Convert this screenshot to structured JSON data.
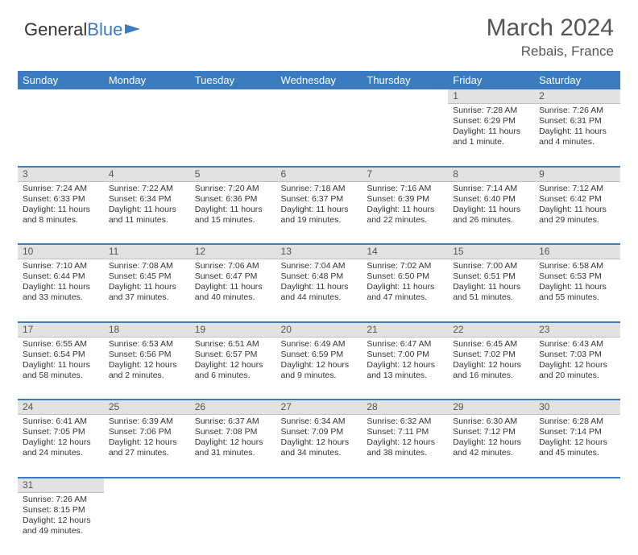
{
  "logo": {
    "text1": "General",
    "text2": "Blue",
    "icon_color": "#3b7bbf"
  },
  "title": "March 2024",
  "location": "Rebais, France",
  "colors": {
    "header_bg": "#3b7bbf",
    "header_fg": "#ffffff",
    "daynum_bg": "#e2e2e2",
    "row_divider": "#3b7bbf"
  },
  "week_headers": [
    "Sunday",
    "Monday",
    "Tuesday",
    "Wednesday",
    "Thursday",
    "Friday",
    "Saturday"
  ],
  "weeks": [
    [
      null,
      null,
      null,
      null,
      null,
      {
        "n": "1",
        "sr": "Sunrise: 7:28 AM",
        "ss": "Sunset: 6:29 PM",
        "dl": "Daylight: 11 hours and 1 minute."
      },
      {
        "n": "2",
        "sr": "Sunrise: 7:26 AM",
        "ss": "Sunset: 6:31 PM",
        "dl": "Daylight: 11 hours and 4 minutes."
      }
    ],
    [
      {
        "n": "3",
        "sr": "Sunrise: 7:24 AM",
        "ss": "Sunset: 6:33 PM",
        "dl": "Daylight: 11 hours and 8 minutes."
      },
      {
        "n": "4",
        "sr": "Sunrise: 7:22 AM",
        "ss": "Sunset: 6:34 PM",
        "dl": "Daylight: 11 hours and 11 minutes."
      },
      {
        "n": "5",
        "sr": "Sunrise: 7:20 AM",
        "ss": "Sunset: 6:36 PM",
        "dl": "Daylight: 11 hours and 15 minutes."
      },
      {
        "n": "6",
        "sr": "Sunrise: 7:18 AM",
        "ss": "Sunset: 6:37 PM",
        "dl": "Daylight: 11 hours and 19 minutes."
      },
      {
        "n": "7",
        "sr": "Sunrise: 7:16 AM",
        "ss": "Sunset: 6:39 PM",
        "dl": "Daylight: 11 hours and 22 minutes."
      },
      {
        "n": "8",
        "sr": "Sunrise: 7:14 AM",
        "ss": "Sunset: 6:40 PM",
        "dl": "Daylight: 11 hours and 26 minutes."
      },
      {
        "n": "9",
        "sr": "Sunrise: 7:12 AM",
        "ss": "Sunset: 6:42 PM",
        "dl": "Daylight: 11 hours and 29 minutes."
      }
    ],
    [
      {
        "n": "10",
        "sr": "Sunrise: 7:10 AM",
        "ss": "Sunset: 6:44 PM",
        "dl": "Daylight: 11 hours and 33 minutes."
      },
      {
        "n": "11",
        "sr": "Sunrise: 7:08 AM",
        "ss": "Sunset: 6:45 PM",
        "dl": "Daylight: 11 hours and 37 minutes."
      },
      {
        "n": "12",
        "sr": "Sunrise: 7:06 AM",
        "ss": "Sunset: 6:47 PM",
        "dl": "Daylight: 11 hours and 40 minutes."
      },
      {
        "n": "13",
        "sr": "Sunrise: 7:04 AM",
        "ss": "Sunset: 6:48 PM",
        "dl": "Daylight: 11 hours and 44 minutes."
      },
      {
        "n": "14",
        "sr": "Sunrise: 7:02 AM",
        "ss": "Sunset: 6:50 PM",
        "dl": "Daylight: 11 hours and 47 minutes."
      },
      {
        "n": "15",
        "sr": "Sunrise: 7:00 AM",
        "ss": "Sunset: 6:51 PM",
        "dl": "Daylight: 11 hours and 51 minutes."
      },
      {
        "n": "16",
        "sr": "Sunrise: 6:58 AM",
        "ss": "Sunset: 6:53 PM",
        "dl": "Daylight: 11 hours and 55 minutes."
      }
    ],
    [
      {
        "n": "17",
        "sr": "Sunrise: 6:55 AM",
        "ss": "Sunset: 6:54 PM",
        "dl": "Daylight: 11 hours and 58 minutes."
      },
      {
        "n": "18",
        "sr": "Sunrise: 6:53 AM",
        "ss": "Sunset: 6:56 PM",
        "dl": "Daylight: 12 hours and 2 minutes."
      },
      {
        "n": "19",
        "sr": "Sunrise: 6:51 AM",
        "ss": "Sunset: 6:57 PM",
        "dl": "Daylight: 12 hours and 6 minutes."
      },
      {
        "n": "20",
        "sr": "Sunrise: 6:49 AM",
        "ss": "Sunset: 6:59 PM",
        "dl": "Daylight: 12 hours and 9 minutes."
      },
      {
        "n": "21",
        "sr": "Sunrise: 6:47 AM",
        "ss": "Sunset: 7:00 PM",
        "dl": "Daylight: 12 hours and 13 minutes."
      },
      {
        "n": "22",
        "sr": "Sunrise: 6:45 AM",
        "ss": "Sunset: 7:02 PM",
        "dl": "Daylight: 12 hours and 16 minutes."
      },
      {
        "n": "23",
        "sr": "Sunrise: 6:43 AM",
        "ss": "Sunset: 7:03 PM",
        "dl": "Daylight: 12 hours and 20 minutes."
      }
    ],
    [
      {
        "n": "24",
        "sr": "Sunrise: 6:41 AM",
        "ss": "Sunset: 7:05 PM",
        "dl": "Daylight: 12 hours and 24 minutes."
      },
      {
        "n": "25",
        "sr": "Sunrise: 6:39 AM",
        "ss": "Sunset: 7:06 PM",
        "dl": "Daylight: 12 hours and 27 minutes."
      },
      {
        "n": "26",
        "sr": "Sunrise: 6:37 AM",
        "ss": "Sunset: 7:08 PM",
        "dl": "Daylight: 12 hours and 31 minutes."
      },
      {
        "n": "27",
        "sr": "Sunrise: 6:34 AM",
        "ss": "Sunset: 7:09 PM",
        "dl": "Daylight: 12 hours and 34 minutes."
      },
      {
        "n": "28",
        "sr": "Sunrise: 6:32 AM",
        "ss": "Sunset: 7:11 PM",
        "dl": "Daylight: 12 hours and 38 minutes."
      },
      {
        "n": "29",
        "sr": "Sunrise: 6:30 AM",
        "ss": "Sunset: 7:12 PM",
        "dl": "Daylight: 12 hours and 42 minutes."
      },
      {
        "n": "30",
        "sr": "Sunrise: 6:28 AM",
        "ss": "Sunset: 7:14 PM",
        "dl": "Daylight: 12 hours and 45 minutes."
      }
    ],
    [
      {
        "n": "31",
        "sr": "Sunrise: 7:26 AM",
        "ss": "Sunset: 8:15 PM",
        "dl": "Daylight: 12 hours and 49 minutes."
      },
      null,
      null,
      null,
      null,
      null,
      null
    ]
  ]
}
